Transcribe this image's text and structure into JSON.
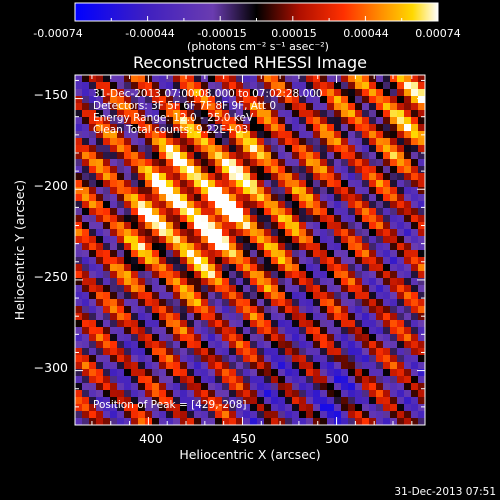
{
  "colorbar": {
    "ticks": [
      "-0.00074",
      "-0.00044",
      "-0.00015",
      "0.00015",
      "0.00044",
      "0.00074"
    ],
    "unit_label": "(photons cm⁻² s⁻¹ asec⁻²)"
  },
  "annotations": {
    "time_range": "31-Dec-2013 07:00:08.000 to 07:02:28.000",
    "detectors": "Detectors: 3F 5F 6F 7F 8F 9F, Att 0",
    "energy": "Energy Range: 12.0 - 25.0 keV",
    "clean": "Clean    Total counts: 9.22E+03",
    "peak": "Position of Peak = [429,-208]"
  },
  "footer_timestamp": "31-Dec-2013 07:51",
  "chart_data": {
    "type": "heatmap",
    "title": "Reconstructed RHESSI Image",
    "xlabel": "Heliocentric X (arcsec)",
    "ylabel": "Heliocentric Y (arcsec)",
    "xlim": [
      361,
      547
    ],
    "ylim": [
      -330,
      -137
    ],
    "x_ticks": [
      400,
      450,
      500
    ],
    "y_ticks": [
      -150,
      -200,
      -250,
      -300
    ],
    "x_tick_labels": [
      "400",
      "450",
      "500"
    ],
    "y_tick_labels": [
      "−150",
      "−200",
      "−250",
      "−300"
    ],
    "value_range": [
      -0.00074,
      0.00074
    ],
    "peak": [
      429,
      -208
    ],
    "colormap": [
      "#0000ff",
      "#4020c0",
      "#6a3cb0",
      "#000000",
      "#b01000",
      "#ff3000",
      "#ff8c00",
      "#ffd800",
      "#ffffff"
    ]
  }
}
